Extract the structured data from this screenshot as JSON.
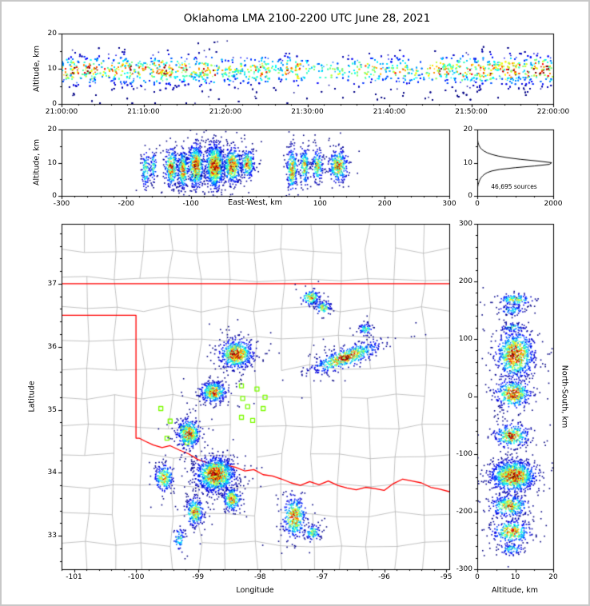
{
  "title": "Oklahoma LMA 2100-2200 UTC June 28, 2021",
  "colors": {
    "background": "#ffffff",
    "frame": "#c8c8c8",
    "axis": "#000000",
    "county_line": "#b4b4b4",
    "state_border": "#ff0000",
    "station_marker": "#7cfc00",
    "histogram_line": "#000000"
  },
  "chart_data": [
    {
      "id": "time_height",
      "type": "scatter",
      "title": "",
      "xlabel": "",
      "ylabel": "Altitude, km",
      "xlim": [
        0,
        3600
      ],
      "ylim": [
        0,
        20
      ],
      "xticks": {
        "values": [
          0,
          600,
          1200,
          1800,
          2400,
          3000,
          3600
        ],
        "labels": [
          "21:00:00",
          "21:10:00",
          "21:20:00",
          "21:30:00",
          "21:40:00",
          "21:50:00",
          "22:00:00"
        ]
      },
      "yticks": {
        "values": [
          0,
          10,
          20
        ],
        "labels": [
          "0",
          "10",
          "20"
        ]
      },
      "band": {
        "n": 8500,
        "alt_mean": 9.6,
        "alt_sigma": 2.1,
        "minute_weights": [
          0.95,
          1.0,
          0.9,
          1.0,
          0.95,
          0.85,
          0.9,
          1.0,
          0.95,
          0.9,
          0.85,
          0.95,
          1.0,
          0.9,
          0.85,
          0.8,
          0.9,
          0.95,
          0.85,
          0.8,
          0.9,
          0.85,
          0.8,
          0.75,
          0.85,
          0.7,
          0.65,
          0.75,
          0.8,
          0.7,
          0.6,
          0.65,
          0.7,
          0.6,
          0.55,
          0.6,
          0.65,
          0.7,
          0.65,
          0.6,
          0.7,
          0.75,
          0.7,
          0.65,
          0.7,
          0.75,
          0.8,
          0.85,
          0.9,
          0.85,
          0.9,
          0.95,
          1.0,
          0.95,
          0.9,
          0.95,
          1.0,
          0.95,
          0.9,
          0.85
        ]
      }
    },
    {
      "id": "ew_height",
      "type": "scatter",
      "xlabel": "East-West, km",
      "ylabel": "Altitude, km",
      "xlim": [
        -300,
        300
      ],
      "ylim": [
        0,
        20
      ],
      "xticks": {
        "values": [
          -300,
          -200,
          -100,
          100,
          200,
          300
        ],
        "labels": [
          "-300",
          "-200",
          "-100",
          "100",
          "200",
          "300"
        ]
      },
      "yticks": {
        "values": [
          0,
          10,
          20
        ],
        "labels": [
          "0",
          "10",
          "20"
        ]
      },
      "clusters": [
        {
          "x": -170,
          "y": 8,
          "sx": 3,
          "sy": 2.8,
          "n": 100,
          "peak": 0.55
        },
        {
          "x": -158,
          "y": 9,
          "sx": 2.5,
          "sy": 2.2,
          "n": 70,
          "peak": 0.5
        },
        {
          "x": -130,
          "y": 8.5,
          "sx": 5,
          "sy": 2.8,
          "n": 280,
          "peak": 0.85
        },
        {
          "x": -112,
          "y": 8,
          "sx": 4,
          "sy": 3.0,
          "n": 260,
          "peak": 0.8
        },
        {
          "x": -92,
          "y": 9,
          "sx": 6,
          "sy": 3.2,
          "n": 480,
          "peak": 0.95
        },
        {
          "x": -63,
          "y": 9,
          "sx": 7,
          "sy": 3.2,
          "n": 850,
          "peak": 1.0
        },
        {
          "x": -36,
          "y": 9,
          "sx": 7,
          "sy": 2.6,
          "n": 420,
          "peak": 0.9
        },
        {
          "x": -12,
          "y": 9.5,
          "sx": 5,
          "sy": 2.2,
          "n": 230,
          "peak": 0.8
        },
        {
          "x": 57,
          "y": 8,
          "sx": 4,
          "sy": 3.2,
          "n": 260,
          "peak": 0.8
        },
        {
          "x": 76,
          "y": 9,
          "sx": 3.5,
          "sy": 2.8,
          "n": 170,
          "peak": 0.7
        },
        {
          "x": 96,
          "y": 9,
          "sx": 4,
          "sy": 2.4,
          "n": 170,
          "peak": 0.7
        },
        {
          "x": 128,
          "y": 9,
          "sx": 7,
          "sy": 2.4,
          "n": 320,
          "peak": 0.85
        }
      ]
    },
    {
      "id": "alt_histogram",
      "type": "line",
      "xlabel": "",
      "ylabel": "",
      "total_label": "46,695 sources",
      "xlim": [
        0,
        2000
      ],
      "ylim": [
        0,
        20
      ],
      "xticks": {
        "values": [
          0,
          2000
        ],
        "labels": [
          "0",
          "2000"
        ]
      },
      "yticks": {
        "values": [
          0,
          10,
          20
        ],
        "labels": [
          "0",
          "10",
          "20"
        ]
      },
      "alt_start": 0,
      "alt_step": 0.5,
      "counts": [
        0,
        0,
        1,
        2,
        4,
        8,
        15,
        25,
        40,
        55,
        75,
        100,
        140,
        190,
        260,
        380,
        600,
        1000,
        1500,
        1900,
        1960,
        1600,
        1150,
        800,
        550,
        380,
        260,
        180,
        120,
        80,
        55,
        35,
        22,
        14,
        8,
        5,
        3,
        1,
        0,
        0,
        0
      ]
    },
    {
      "id": "map",
      "type": "scatter",
      "xlabel": "Longitude",
      "ylabel": "Latitude",
      "xlim": [
        -101.2,
        -94.95
      ],
      "ylim": [
        32.47,
        37.95
      ],
      "xticks": {
        "values": [
          -101,
          -100,
          -99,
          -98,
          -97,
          -96,
          -95
        ],
        "labels": [
          "-101",
          "-100",
          "-99",
          "-98",
          "-97",
          "-96",
          "-95"
        ]
      },
      "yticks": {
        "values": [
          33,
          34,
          35,
          36,
          37
        ],
        "labels": [
          "33",
          "34",
          "35",
          "36",
          "37"
        ]
      },
      "state_border": [
        [
          [
            -101.2,
            37
          ],
          [
            -94.95,
            37
          ]
        ],
        [
          [
            -101.2,
            36.5
          ],
          [
            -100,
            36.5
          ],
          [
            -100,
            34.55
          ],
          [
            -99.95,
            34.55
          ],
          [
            -99.85,
            34.5
          ],
          [
            -99.72,
            34.44
          ],
          [
            -99.58,
            34.4
          ],
          [
            -99.45,
            34.43
          ],
          [
            -99.3,
            34.36
          ],
          [
            -99.15,
            34.3
          ],
          [
            -99.0,
            34.21
          ],
          [
            -98.85,
            34.16
          ],
          [
            -98.7,
            34.13
          ],
          [
            -98.55,
            34.12
          ],
          [
            -98.4,
            34.09
          ],
          [
            -98.25,
            34.03
          ],
          [
            -98.1,
            34.05
          ],
          [
            -97.95,
            33.97
          ],
          [
            -97.8,
            33.95
          ],
          [
            -97.65,
            33.9
          ],
          [
            -97.5,
            33.84
          ],
          [
            -97.35,
            33.8
          ],
          [
            -97.2,
            33.86
          ],
          [
            -97.05,
            33.81
          ],
          [
            -96.9,
            33.87
          ],
          [
            -96.75,
            33.8
          ],
          [
            -96.6,
            33.76
          ],
          [
            -96.45,
            33.73
          ],
          [
            -96.3,
            33.77
          ],
          [
            -96.15,
            33.75
          ],
          [
            -96.0,
            33.72
          ],
          [
            -95.85,
            33.83
          ],
          [
            -95.7,
            33.9
          ],
          [
            -95.55,
            33.87
          ],
          [
            -95.4,
            33.84
          ],
          [
            -95.25,
            33.77
          ],
          [
            -95.1,
            33.74
          ],
          [
            -94.95,
            33.7
          ]
        ]
      ],
      "stations": [
        [
          -98.3,
          35.38
        ],
        [
          -98.05,
          35.33
        ],
        [
          -97.92,
          35.2
        ],
        [
          -98.28,
          35.18
        ],
        [
          -98.2,
          35.05
        ],
        [
          -97.95,
          35.02
        ],
        [
          -98.3,
          34.88
        ],
        [
          -98.12,
          34.83
        ],
        [
          -99.6,
          35.02
        ],
        [
          -99.45,
          34.82
        ],
        [
          -99.25,
          34.7
        ],
        [
          -99.5,
          34.55
        ],
        [
          -99.18,
          34.48
        ],
        [
          -99.05,
          34.6
        ]
      ],
      "clusters": [
        {
          "x": -97.18,
          "y": 36.78,
          "sx": 0.07,
          "sy": 0.06,
          "n": 150,
          "peak": 0.8
        },
        {
          "x": -96.98,
          "y": 36.62,
          "sx": 0.06,
          "sy": 0.05,
          "n": 100,
          "peak": 0.7
        },
        {
          "x": -98.38,
          "y": 35.88,
          "sx": 0.13,
          "sy": 0.11,
          "n": 650,
          "peak": 0.95
        },
        {
          "x": -96.62,
          "y": 35.83,
          "sx": 0.27,
          "sy": 0.07,
          "n": 600,
          "peak": 0.9,
          "rot": 20
        },
        {
          "x": -96.3,
          "y": 36.28,
          "sx": 0.05,
          "sy": 0.05,
          "n": 70,
          "peak": 0.55
        },
        {
          "x": -98.75,
          "y": 35.28,
          "sx": 0.1,
          "sy": 0.08,
          "n": 420,
          "peak": 0.9
        },
        {
          "x": -99.15,
          "y": 34.62,
          "sx": 0.09,
          "sy": 0.11,
          "n": 420,
          "peak": 0.85
        },
        {
          "x": -99.55,
          "y": 33.92,
          "sx": 0.07,
          "sy": 0.1,
          "n": 230,
          "peak": 0.8
        },
        {
          "x": -98.72,
          "y": 33.97,
          "sx": 0.15,
          "sy": 0.13,
          "n": 1150,
          "peak": 1.0
        },
        {
          "x": -98.45,
          "y": 33.58,
          "sx": 0.07,
          "sy": 0.09,
          "n": 220,
          "peak": 0.8
        },
        {
          "x": -99.05,
          "y": 33.38,
          "sx": 0.07,
          "sy": 0.11,
          "n": 260,
          "peak": 0.8
        },
        {
          "x": -97.45,
          "y": 33.3,
          "sx": 0.09,
          "sy": 0.16,
          "n": 380,
          "peak": 0.85
        },
        {
          "x": -97.15,
          "y": 33.05,
          "sx": 0.06,
          "sy": 0.06,
          "n": 110,
          "peak": 0.6
        },
        {
          "x": -99.3,
          "y": 32.95,
          "sx": 0.05,
          "sy": 0.09,
          "n": 70,
          "peak": 0.45
        }
      ]
    },
    {
      "id": "ns_height",
      "type": "scatter",
      "xlabel": "Altitude, km",
      "ylabel": "North-South, km",
      "xlim": [
        0,
        20
      ],
      "ylim": [
        -300,
        300
      ],
      "xticks": {
        "values": [
          0,
          10,
          20
        ],
        "labels": [
          "0",
          "10",
          "20"
        ]
      },
      "yticks": {
        "values": [
          300,
          200,
          100,
          0,
          -100,
          -200,
          -300
        ],
        "labels": [
          "300",
          "200",
          "100",
          "0",
          "-100",
          "-200",
          "-300"
        ]
      },
      "clusters": [
        {
          "x": 10,
          "y": 168,
          "sx": 2.2,
          "sy": 5,
          "n": 140,
          "peak": 0.6
        },
        {
          "x": 9,
          "y": 150,
          "sx": 1.6,
          "sy": 4,
          "n": 70,
          "peak": 0.45
        },
        {
          "x": 9.5,
          "y": 120,
          "sx": 1.6,
          "sy": 4,
          "n": 70,
          "peak": 0.45
        },
        {
          "x": 10,
          "y": 72,
          "sx": 2.4,
          "sy": 20,
          "n": 850,
          "peak": 0.95
        },
        {
          "x": 9.5,
          "y": 5,
          "sx": 2.2,
          "sy": 12,
          "n": 430,
          "peak": 0.9
        },
        {
          "x": 9,
          "y": -68,
          "sx": 2.2,
          "sy": 10,
          "n": 340,
          "peak": 0.85
        },
        {
          "x": 9.5,
          "y": -138,
          "sx": 2.8,
          "sy": 13,
          "n": 1100,
          "peak": 1.0
        },
        {
          "x": 8.5,
          "y": -190,
          "sx": 2.4,
          "sy": 9,
          "n": 330,
          "peak": 0.8
        },
        {
          "x": 9,
          "y": -235,
          "sx": 2.4,
          "sy": 10,
          "n": 330,
          "peak": 0.8
        },
        {
          "x": 9,
          "y": -265,
          "sx": 1.5,
          "sy": 5,
          "n": 80,
          "peak": 0.45
        }
      ]
    }
  ]
}
